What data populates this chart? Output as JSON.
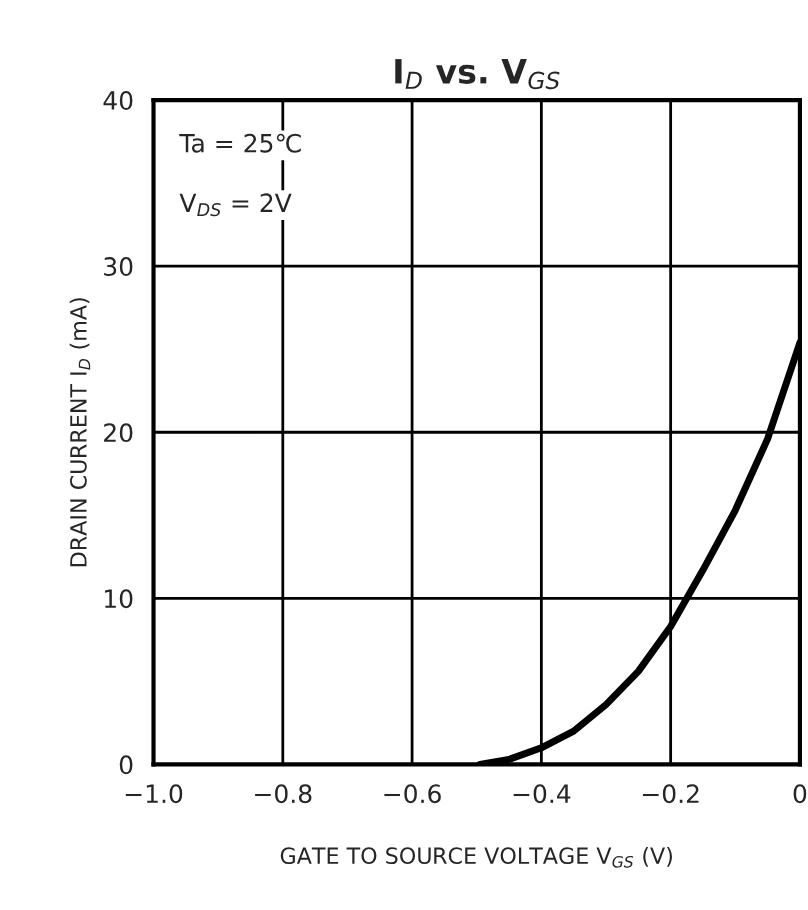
{
  "chart_data": {
    "type": "line",
    "title": "I$_{D}$ vs. V$_{GS}$",
    "xlabel": "GATE TO SOURCE VOLTAGE V$_{GS}$ (V)",
    "ylabel": "DRAIN CURRENT I$_{D}$ (mA)",
    "annotations": [
      "Ta = 25℃",
      "V$_{DS}$ = 2V"
    ],
    "x": [
      -0.495,
      -0.45,
      -0.4,
      -0.35,
      -0.3,
      -0.25,
      -0.2,
      -0.15,
      -0.1,
      -0.05,
      0
    ],
    "series": [
      {
        "color": "#000000",
        "values": [
          0,
          0.3,
          1.0,
          2.0,
          3.6,
          5.6,
          8.3,
          11.7,
          15.3,
          19.6,
          25.4
        ]
      }
    ],
    "xlim": [
      -1,
      0
    ],
    "ylim": [
      0,
      40
    ],
    "xticks": [
      {
        "value": -1,
        "label": "−1.0"
      },
      {
        "value": -0.8,
        "label": "−0.8"
      },
      {
        "value": -0.6,
        "label": "−0.6"
      },
      {
        "value": -0.4,
        "label": "−0.4"
      },
      {
        "value": -0.2,
        "label": "−0.2"
      },
      0
    ],
    "yticks": [
      0,
      10,
      20,
      30,
      40
    ],
    "grid": true,
    "line_style": "solid"
  }
}
